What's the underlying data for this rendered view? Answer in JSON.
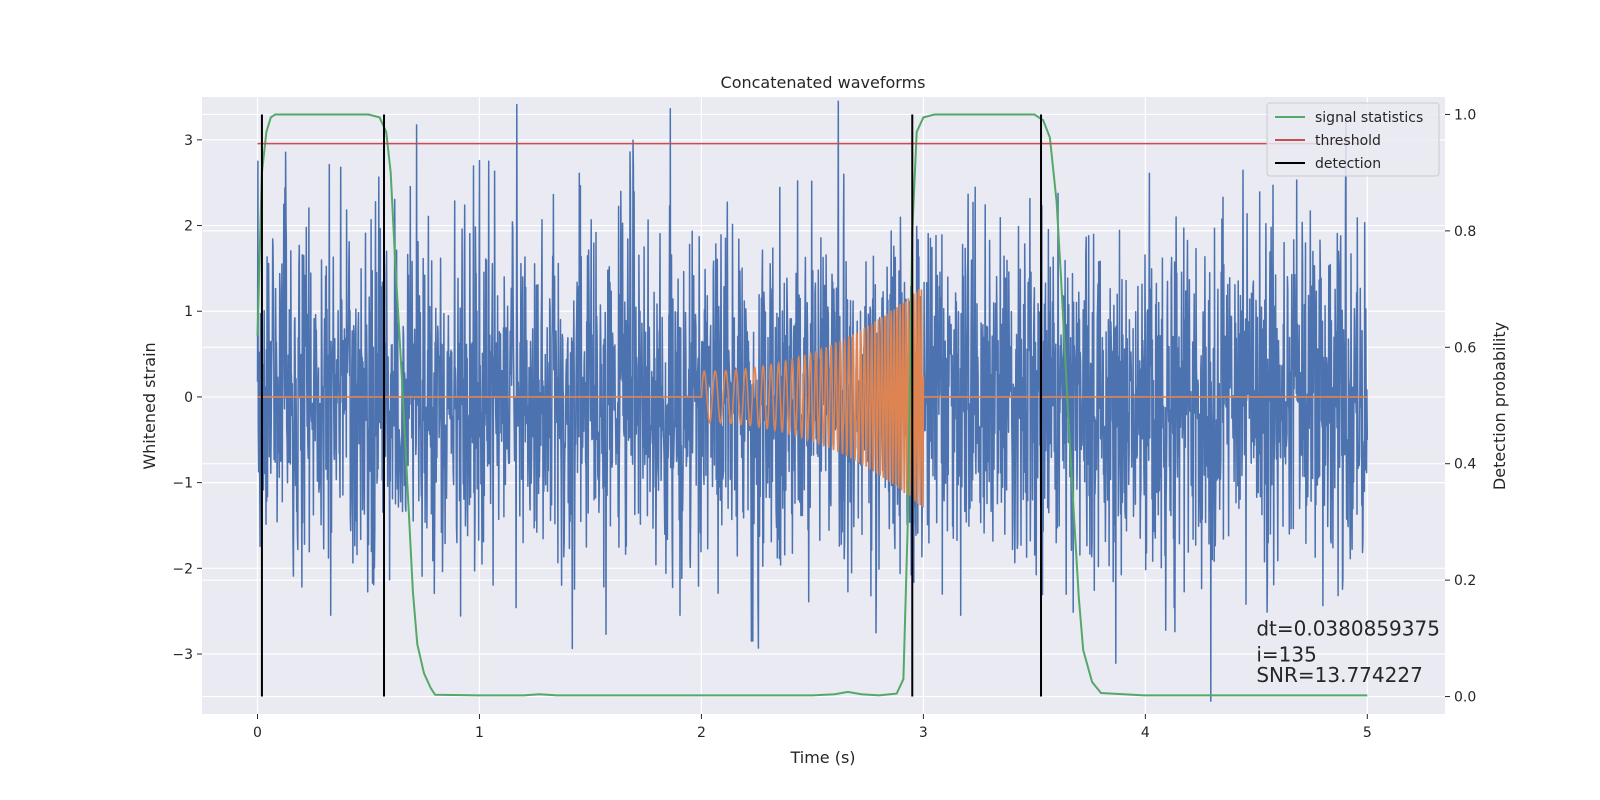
{
  "chart_data": {
    "type": "line",
    "title": "Concatenated waveforms",
    "xlabel": "Time (s)",
    "ylabel": "Whitened strain",
    "y2label": "Detection probability",
    "xlim": [
      -0.25,
      5.35
    ],
    "ylim": [
      -3.7,
      3.5
    ],
    "y2lim": [
      -0.03,
      1.03
    ],
    "x_ticks": [
      0,
      1,
      2,
      3,
      4,
      5
    ],
    "y_ticks": [
      -3,
      -2,
      -1,
      0,
      1,
      2,
      3
    ],
    "y2_ticks": [
      0.0,
      0.2,
      0.4,
      0.6,
      0.8,
      1.0
    ],
    "x_tick_labels": [
      "0",
      "1",
      "2",
      "3",
      "4",
      "5"
    ],
    "y_tick_labels": [
      "−3",
      "−2",
      "−1",
      "0",
      "1",
      "2",
      "3"
    ],
    "y2_tick_labels": [
      "0.0",
      "0.2",
      "0.4",
      "0.6",
      "0.8",
      "1.0"
    ],
    "grid": true,
    "legend_position": "top-right",
    "colors": {
      "strain": "#4c72b0",
      "template": "#dd8452",
      "signal_statistics": "#55a868",
      "threshold": "#c44e52",
      "detection": "#000000",
      "background": "#eaeaf2"
    },
    "series": [
      {
        "name": "signal statistics",
        "axis": "right",
        "x": [
          0.0,
          0.02,
          0.04,
          0.06,
          0.08,
          0.1,
          0.3,
          0.5,
          0.55,
          0.58,
          0.6,
          0.62,
          0.65,
          0.68,
          0.7,
          0.72,
          0.75,
          0.78,
          0.8,
          1.0,
          1.2,
          1.27,
          1.35,
          2.0,
          2.5,
          2.6,
          2.66,
          2.72,
          2.8,
          2.88,
          2.91,
          2.93,
          2.95,
          2.97,
          3.0,
          3.05,
          3.1,
          3.3,
          3.5,
          3.54,
          3.57,
          3.6,
          3.62,
          3.65,
          3.68,
          3.7,
          3.72,
          3.76,
          3.8,
          4.0,
          4.5,
          5.0
        ],
        "y": [
          0.62,
          0.9,
          0.97,
          0.995,
          1.0,
          1.0,
          1.0,
          1.0,
          0.995,
          0.97,
          0.9,
          0.75,
          0.55,
          0.33,
          0.18,
          0.09,
          0.04,
          0.015,
          0.003,
          0.002,
          0.002,
          0.004,
          0.002,
          0.002,
          0.002,
          0.004,
          0.008,
          0.004,
          0.002,
          0.005,
          0.03,
          0.3,
          0.8,
          0.97,
          0.995,
          1.0,
          1.0,
          1.0,
          1.0,
          0.99,
          0.96,
          0.85,
          0.72,
          0.5,
          0.3,
          0.17,
          0.08,
          0.025,
          0.006,
          0.002,
          0.002,
          0.002
        ]
      },
      {
        "name": "threshold",
        "axis": "right",
        "x": [
          0.0,
          5.0
        ],
        "y": [
          0.95,
          0.95
        ]
      },
      {
        "name": "detection",
        "axis": "right",
        "x_positions": [
          0.02,
          0.57,
          2.95,
          3.53
        ]
      }
    ],
    "strain_series": {
      "axis": "left",
      "x_range": [
        0,
        5
      ],
      "typical_amplitude": 1.0,
      "peak_amplitude": 3.45
    },
    "template_series": {
      "axis": "left",
      "x_range": [
        0,
        5
      ],
      "chirp_start": 2.0,
      "chirp_end": 3.0,
      "start_amplitude": 0.3,
      "end_amplitude": 1.3,
      "start_frequency_hz": 20,
      "end_frequency_hz": 90
    },
    "legend": [
      "signal statistics",
      "threshold",
      "detection"
    ],
    "annotations": [
      {
        "text": "dt=0.0380859375",
        "x": 4.5,
        "y2": 0.105
      },
      {
        "text": " i=135",
        "x": 4.5,
        "y2": 0.06
      },
      {
        "text": "SNR=13.774227",
        "x": 4.5,
        "y2": 0.025
      }
    ]
  }
}
